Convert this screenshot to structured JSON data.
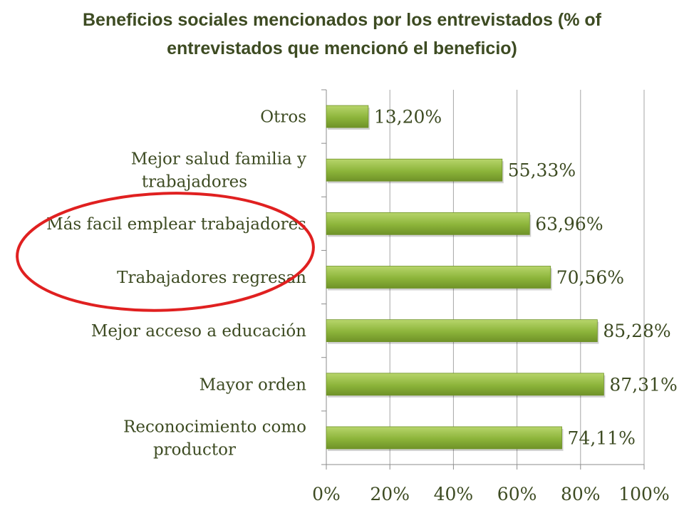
{
  "title": {
    "line1": "Beneficios sociales mencionados por los entrevistados (% of",
    "line2": "entrevistados que mencionó el beneficio)"
  },
  "colors": {
    "bar": "#8cb43a",
    "bar_light": "#b7d56b",
    "bar_dark": "#6f9228",
    "text": "#3d4b22",
    "axis": "#8c8c8c",
    "highlight": "#e02020"
  },
  "chart_data": {
    "type": "bar",
    "orientation": "horizontal",
    "categories": [
      [
        "Otros"
      ],
      [
        "Mejor salud familia y",
        "trabajadores"
      ],
      [
        "Más facil emplear trabajadores"
      ],
      [
        "Trabajadores regresan"
      ],
      [
        "Mejor acceso a educación"
      ],
      [
        "Mayor orden"
      ],
      [
        "Reconocimiento como",
        "productor"
      ]
    ],
    "values": [
      13.2,
      55.33,
      63.96,
      70.56,
      85.28,
      87.31,
      74.11
    ],
    "value_labels": [
      "13,20%",
      "55,33%",
      "63,96%",
      "70,56%",
      "85,28%",
      "87,31%",
      "74,11%"
    ],
    "xlim": [
      0,
      100
    ],
    "x_ticks": [
      0,
      20,
      40,
      60,
      80,
      100
    ],
    "x_tick_labels": [
      "0%",
      "20%",
      "40%",
      "60%",
      "80%",
      "100%"
    ],
    "grid": "vertical",
    "legend": "none",
    "annotations": [
      {
        "type": "ellipse",
        "encircles": [
          "Más facil emplear trabajadores",
          "Trabajadores regresan"
        ],
        "color": "#e02020"
      }
    ]
  }
}
